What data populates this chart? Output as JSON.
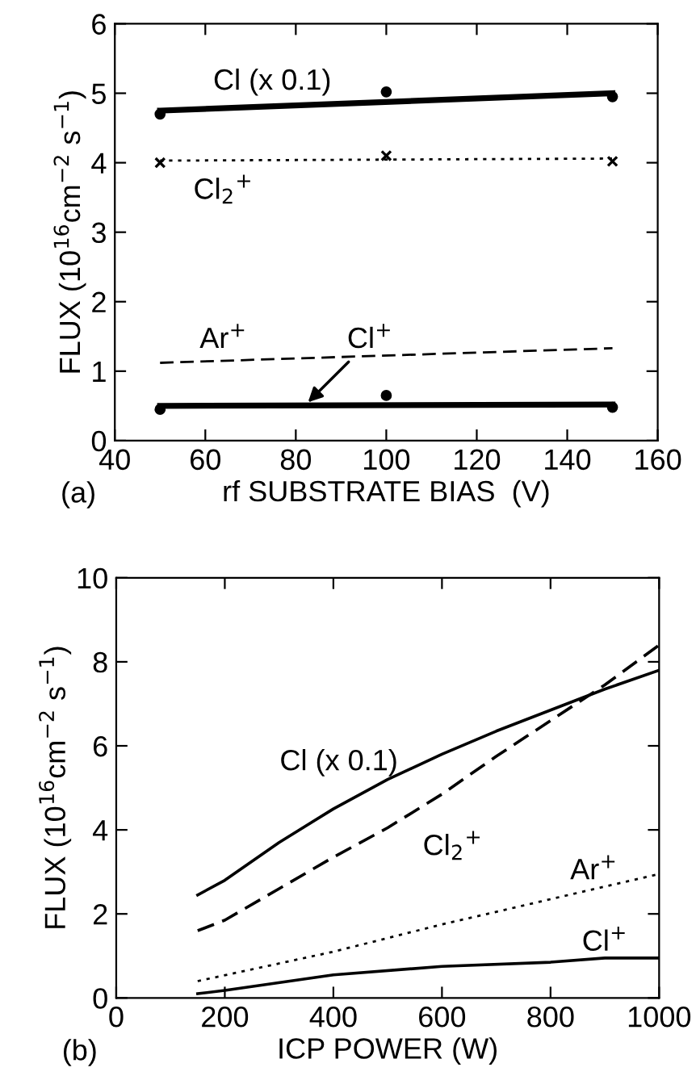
{
  "chart_data": [
    {
      "type": "line",
      "xlabel": "rf SUBSTRATE BIAS  (V)",
      "ylabel": "FLUX (10$^{16}$cm$^{−2}$ s$^{−1}$)",
      "annotations": [
        "(a)"
      ],
      "xlim": [
        40,
        160
      ],
      "xticks": [
        40,
        60,
        80,
        100,
        120,
        140,
        160
      ],
      "ylim": [
        0,
        6
      ],
      "yticks": [
        0,
        1,
        2,
        3,
        4,
        5,
        6
      ],
      "grid": false,
      "series": [
        {
          "name": "Cl (x 0.1)",
          "color": "#000000",
          "line_style": "solid",
          "x": [
            50,
            150
          ],
          "values": [
            4.75,
            5.0
          ]
        },
        {
          "name": "Cl$_{2}$$^{+}$",
          "color": "#000000",
          "line_style": "dotted",
          "x": [
            50,
            150
          ],
          "values": [
            4.03,
            4.06
          ]
        },
        {
          "name": "Ar$^{+}$",
          "color": "#000000",
          "line_style": "dashed",
          "x": [
            50,
            150
          ],
          "values": [
            1.12,
            1.33
          ]
        },
        {
          "name": "Cl$^{+}$",
          "color": "#000000",
          "line_style": "solid",
          "x": [
            50,
            150
          ],
          "values": [
            0.5,
            0.52
          ]
        },
        {
          "type": "scatter",
          "color": "#000000",
          "marker": "circle",
          "x": [
            50,
            100,
            150
          ],
          "values": [
            4.7,
            5.02,
            4.95
          ]
        },
        {
          "type": "scatter",
          "color": "#000000",
          "marker": "cross",
          "x": [
            50,
            100,
            150
          ],
          "values": [
            4.0,
            4.1,
            4.02
          ]
        },
        {
          "type": "scatter",
          "color": "#000000",
          "marker": "circle",
          "x": [
            50,
            100,
            150
          ],
          "values": [
            0.45,
            0.65,
            0.48
          ]
        }
      ]
    },
    {
      "type": "line",
      "xlabel": "ICP POWER (W)",
      "ylabel": "FLUX (10$^{16}$cm$^{−2}$ s$^{−1}$)",
      "annotations": [
        "(b)"
      ],
      "xlim": [
        0,
        1000
      ],
      "xticks": [
        0,
        200,
        400,
        600,
        800,
        1000
      ],
      "ylim": [
        0,
        10
      ],
      "yticks": [
        0,
        2,
        4,
        6,
        8,
        10
      ],
      "grid": false,
      "series": [
        {
          "name": "Cl (x 0.1)",
          "color": "#000000",
          "line_style": "solid",
          "x": [
            150,
            200,
            300,
            400,
            500,
            600,
            700,
            800,
            900,
            1000
          ],
          "values": [
            2.45,
            2.8,
            3.7,
            4.5,
            5.2,
            5.8,
            6.35,
            6.85,
            7.35,
            7.8
          ]
        },
        {
          "name": "Cl$_{2}$$^{+}$",
          "color": "#000000",
          "line_style": "dashed",
          "x": [
            150,
            200,
            300,
            400,
            500,
            600,
            700,
            800,
            900,
            1000
          ],
          "values": [
            1.6,
            1.85,
            2.6,
            3.35,
            4.05,
            4.85,
            5.75,
            6.6,
            7.45,
            8.4
          ]
        },
        {
          "name": "Ar$^{+}$",
          "color": "#000000",
          "line_style": "dotted",
          "x": [
            150,
            400,
            600,
            800,
            1000
          ],
          "values": [
            0.4,
            1.1,
            1.75,
            2.35,
            2.95
          ]
        },
        {
          "name": "Cl$^{+}$",
          "color": "#000000",
          "line_style": "solid",
          "x": [
            150,
            200,
            400,
            600,
            800,
            900,
            1000
          ],
          "values": [
            0.1,
            0.18,
            0.55,
            0.75,
            0.85,
            0.95,
            0.95
          ]
        }
      ]
    }
  ]
}
